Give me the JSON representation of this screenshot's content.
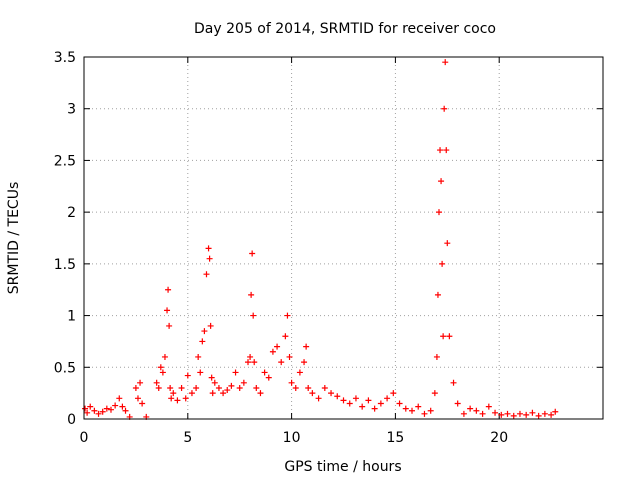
{
  "chart_data": {
    "type": "scatter",
    "title": "Day 205 of 2014, SRMTID for receiver coco",
    "xlabel": "GPS time / hours",
    "ylabel": "SRMTID / TECUs",
    "xlim": [
      0,
      25
    ],
    "ylim": [
      0,
      3.5
    ],
    "xticks": [
      0,
      5,
      10,
      15,
      20
    ],
    "xtick_labels": [
      "0",
      "5",
      "10",
      "15",
      "20"
    ],
    "yticks": [
      0,
      0.5,
      1,
      1.5,
      2,
      2.5,
      3,
      3.5
    ],
    "ytick_labels": [
      "0",
      "0.5",
      "1",
      "1.5",
      "2",
      "2.5",
      "3",
      "3.5"
    ],
    "grid": true,
    "marker": "+",
    "marker_color": "#ff0000",
    "series": [
      {
        "name": "SRMTID",
        "x": [
          0.05,
          0.15,
          0.3,
          0.5,
          0.7,
          0.9,
          1.1,
          1.3,
          1.5,
          1.7,
          1.85,
          2.0,
          2.2,
          2.5,
          2.6,
          2.7,
          2.8,
          3.0,
          3.5,
          3.6,
          3.7,
          3.8,
          3.9,
          4.0,
          4.05,
          4.1,
          4.15,
          4.2,
          4.3,
          4.5,
          4.7,
          4.9,
          5.0,
          5.2,
          5.4,
          5.5,
          5.6,
          5.7,
          5.8,
          5.9,
          6.0,
          6.05,
          6.1,
          6.15,
          6.2,
          6.3,
          6.5,
          6.7,
          6.9,
          7.1,
          7.3,
          7.5,
          7.7,
          7.9,
          8.0,
          8.05,
          8.1,
          8.15,
          8.2,
          8.3,
          8.5,
          8.7,
          8.9,
          9.1,
          9.3,
          9.5,
          9.7,
          9.8,
          9.9,
          10.0,
          10.2,
          10.4,
          10.6,
          10.7,
          10.8,
          11.0,
          11.3,
          11.6,
          11.9,
          12.2,
          12.5,
          12.8,
          13.1,
          13.4,
          13.7,
          14.0,
          14.3,
          14.6,
          14.9,
          15.2,
          15.5,
          15.8,
          16.1,
          16.4,
          16.7,
          16.9,
          17.0,
          17.05,
          17.1,
          17.15,
          17.2,
          17.25,
          17.3,
          17.35,
          17.4,
          17.45,
          17.5,
          17.6,
          17.8,
          18.0,
          18.3,
          18.6,
          18.9,
          19.2,
          19.5,
          19.8,
          20.1,
          20.4,
          20.7,
          21.0,
          21.3,
          21.6,
          21.9,
          22.2,
          22.5,
          22.7
        ],
        "y": [
          0.1,
          0.06,
          0.12,
          0.08,
          0.05,
          0.07,
          0.1,
          0.09,
          0.13,
          0.2,
          0.12,
          0.08,
          0.02,
          0.3,
          0.2,
          0.35,
          0.15,
          0.02,
          0.35,
          0.3,
          0.5,
          0.45,
          0.6,
          1.05,
          1.25,
          0.9,
          0.3,
          0.2,
          0.25,
          0.18,
          0.3,
          0.2,
          0.42,
          0.25,
          0.3,
          0.6,
          0.45,
          0.75,
          0.85,
          1.4,
          1.65,
          1.55,
          0.9,
          0.4,
          0.25,
          0.35,
          0.3,
          0.25,
          0.28,
          0.32,
          0.45,
          0.3,
          0.35,
          0.55,
          0.6,
          1.2,
          1.6,
          1.0,
          0.55,
          0.3,
          0.25,
          0.45,
          0.4,
          0.65,
          0.7,
          0.55,
          0.8,
          1.0,
          0.6,
          0.35,
          0.3,
          0.45,
          0.55,
          0.7,
          0.3,
          0.25,
          0.2,
          0.3,
          0.25,
          0.22,
          0.18,
          0.15,
          0.2,
          0.12,
          0.18,
          0.1,
          0.15,
          0.2,
          0.25,
          0.15,
          0.1,
          0.08,
          0.12,
          0.05,
          0.08,
          0.25,
          0.6,
          1.2,
          2.0,
          2.6,
          2.3,
          1.5,
          0.8,
          3.0,
          3.45,
          2.6,
          1.7,
          0.8,
          0.35,
          0.15,
          0.05,
          0.1,
          0.08,
          0.05,
          0.12,
          0.06,
          0.04,
          0.05,
          0.03,
          0.05,
          0.04,
          0.06,
          0.03,
          0.05,
          0.04,
          0.07
        ]
      }
    ]
  }
}
